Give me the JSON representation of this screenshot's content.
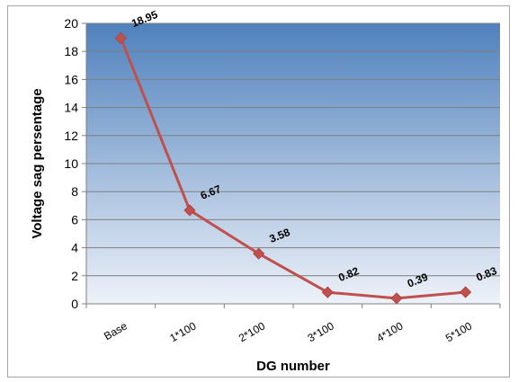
{
  "chart_data": {
    "type": "line",
    "categories": [
      "Base",
      "1*100",
      "2*100",
      "3*100",
      "4*100",
      "5*100"
    ],
    "series": [
      {
        "values": [
          18.95,
          6.67,
          3.58,
          0.82,
          0.39,
          0.83
        ],
        "labels": [
          "18.95",
          "6.67",
          "3.58",
          "0.82",
          "0.39",
          "0.83"
        ],
        "color": "#c0504d"
      }
    ],
    "title": "",
    "xlabel": "DG number",
    "ylabel": "Voltage sag persentage",
    "ylim": [
      0,
      20
    ],
    "yticks": [
      "0",
      "2",
      "4",
      "6",
      "8",
      "10",
      "12",
      "14",
      "16",
      "18",
      "20"
    ],
    "grid": true,
    "legend": "none",
    "plot_background": [
      "#4f81bd",
      "#eef2f9"
    ]
  }
}
